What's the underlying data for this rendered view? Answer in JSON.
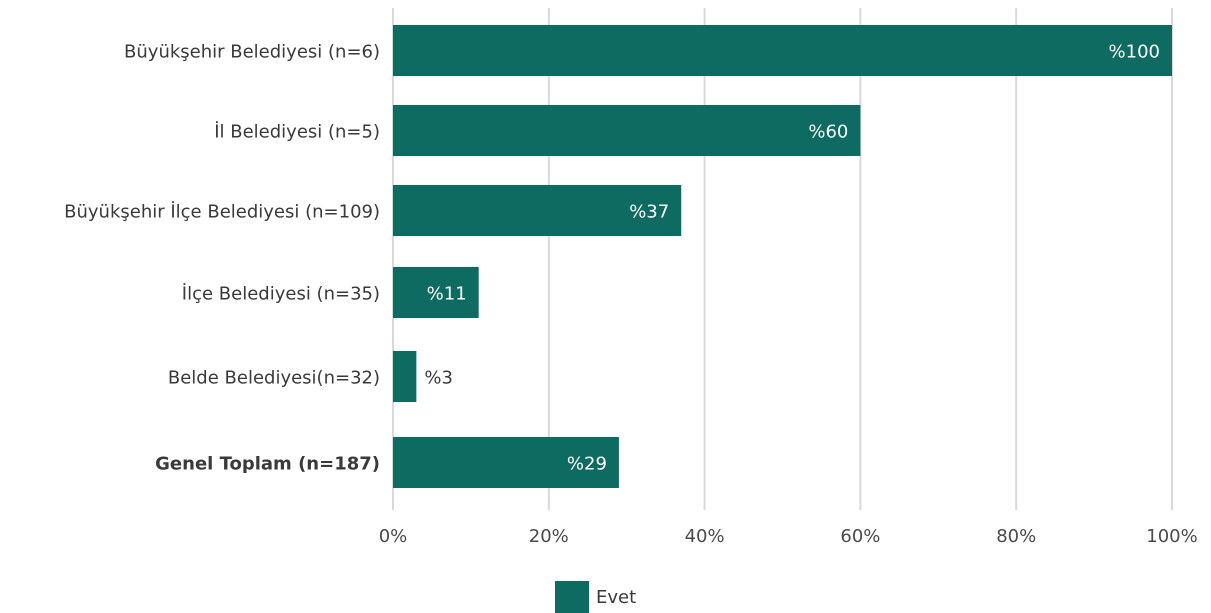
{
  "chart_data": {
    "type": "bar",
    "orientation": "horizontal",
    "categories": [
      "Büyükşehir Belediyesi (n=6)",
      "İl Belediyesi (n=5)",
      "Büyükşehir İlçe Belediyesi (n=109)",
      "İlçe Belediyesi (n=35)",
      "Belde Belediyesi(n=32)",
      "Genel Toplam (n=187)"
    ],
    "bold_categories": [
      "Genel Toplam (n=187)"
    ],
    "series": [
      {
        "name": "Evet",
        "values": [
          100,
          60,
          37,
          11,
          3,
          29
        ],
        "labels": [
          "%100",
          "%60",
          "%37",
          "%11",
          "%3",
          "%29"
        ]
      }
    ],
    "xlim": [
      0,
      100
    ],
    "x_ticks": [
      0,
      20,
      40,
      60,
      80,
      100
    ],
    "x_tick_labels": [
      "0%",
      "20%",
      "40%",
      "60%",
      "80%",
      "100%"
    ],
    "grid": "vertical",
    "legend_position": "bottom-center",
    "colors": {
      "bar": "#0e6b62",
      "grid": "#d9d9d9",
      "label_inside": "#ffffff",
      "label_outside": "#3a3a3a"
    }
  }
}
